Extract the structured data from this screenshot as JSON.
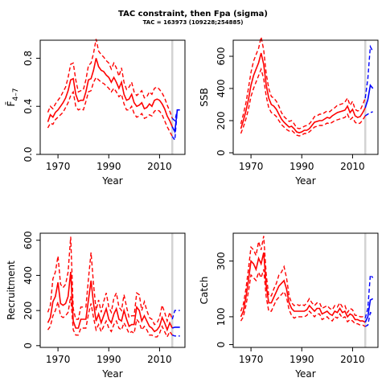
{
  "figure": {
    "title": "TAC constraint, then Fpa (sigma)",
    "subtitle": "TAC = 163973 (109228;254885)"
  },
  "colors": {
    "history": "#ff0000",
    "forecast": "#0000ff",
    "reference_line": "#d3d3d3",
    "frame": "#000000"
  },
  "chart_data": [
    {
      "id": "fbar",
      "type": "line",
      "xlabel": "Year",
      "ylabel": "F̄ 4–7",
      "ylabel_main": "F̄",
      "ylabel_sub": "4–7",
      "xlim": [
        1963,
        2020
      ],
      "ylim": [
        0,
        0.95
      ],
      "xticks": [
        1970,
        1990,
        2010
      ],
      "yticks": [
        0.0,
        0.4,
        0.8
      ],
      "ytick_labels": [
        "0.0",
        "0.4",
        "0.8"
      ],
      "vline": 2015,
      "history": {
        "x": [
          1966,
          1967,
          1968,
          1969,
          1970,
          1971,
          1972,
          1973,
          1974,
          1975,
          1976,
          1977,
          1978,
          1979,
          1980,
          1981,
          1982,
          1983,
          1984,
          1985,
          1986,
          1987,
          1988,
          1989,
          1990,
          1991,
          1992,
          1993,
          1994,
          1995,
          1996,
          1997,
          1998,
          1999,
          2000,
          2001,
          2002,
          2003,
          2004,
          2005,
          2006,
          2007,
          2008,
          2009,
          2010,
          2011,
          2012,
          2013,
          2014,
          2015
        ],
        "mid": [
          0.27,
          0.33,
          0.31,
          0.35,
          0.37,
          0.4,
          0.43,
          0.47,
          0.53,
          0.62,
          0.63,
          0.5,
          0.44,
          0.45,
          0.45,
          0.52,
          0.62,
          0.63,
          0.7,
          0.8,
          0.73,
          0.7,
          0.69,
          0.66,
          0.64,
          0.6,
          0.64,
          0.6,
          0.55,
          0.6,
          0.5,
          0.45,
          0.46,
          0.5,
          0.43,
          0.4,
          0.41,
          0.43,
          0.38,
          0.39,
          0.42,
          0.4,
          0.45,
          0.46,
          0.45,
          0.42,
          0.38,
          0.32,
          0.28,
          0.23
        ],
        "low": [
          0.22,
          0.26,
          0.25,
          0.29,
          0.31,
          0.33,
          0.35,
          0.39,
          0.43,
          0.49,
          0.52,
          0.4,
          0.37,
          0.38,
          0.37,
          0.44,
          0.52,
          0.53,
          0.6,
          0.64,
          0.62,
          0.6,
          0.59,
          0.57,
          0.55,
          0.52,
          0.55,
          0.52,
          0.48,
          0.5,
          0.42,
          0.37,
          0.37,
          0.4,
          0.34,
          0.31,
          0.32,
          0.34,
          0.3,
          0.31,
          0.33,
          0.32,
          0.36,
          0.37,
          0.36,
          0.33,
          0.28,
          0.23,
          0.19,
          0.15
        ],
        "high": [
          0.35,
          0.4,
          0.38,
          0.42,
          0.45,
          0.48,
          0.52,
          0.56,
          0.64,
          0.75,
          0.76,
          0.62,
          0.52,
          0.53,
          0.54,
          0.62,
          0.74,
          0.76,
          0.84,
          0.96,
          0.86,
          0.83,
          0.81,
          0.78,
          0.76,
          0.71,
          0.76,
          0.72,
          0.65,
          0.72,
          0.6,
          0.54,
          0.56,
          0.6,
          0.52,
          0.49,
          0.51,
          0.53,
          0.47,
          0.48,
          0.52,
          0.5,
          0.55,
          0.56,
          0.54,
          0.51,
          0.47,
          0.41,
          0.36,
          0.3
        ]
      },
      "forecast": {
        "x": [
          2015,
          2016,
          2017,
          2018
        ],
        "mid": [
          0.23,
          0.19,
          0.37,
          0.37
        ],
        "low": [
          0.15,
          0.12,
          0.37,
          0.37
        ],
        "high": [
          0.3,
          0.28,
          0.37,
          0.37
        ]
      }
    },
    {
      "id": "ssb",
      "type": "line",
      "xlabel": "Year",
      "ylabel": "SSB",
      "xlim": [
        1963,
        2020
      ],
      "ylim": [
        -10,
        700
      ],
      "xticks": [
        1970,
        1990,
        2010
      ],
      "yticks": [
        0,
        200,
        400,
        600
      ],
      "ytick_labels": [
        "0",
        "200",
        "400",
        "600"
      ],
      "vline": 2015,
      "history": {
        "x": [
          1966,
          1967,
          1968,
          1969,
          1970,
          1971,
          1972,
          1973,
          1974,
          1975,
          1976,
          1977,
          1978,
          1979,
          1980,
          1981,
          1982,
          1983,
          1984,
          1985,
          1986,
          1987,
          1988,
          1989,
          1990,
          1991,
          1992,
          1993,
          1994,
          1995,
          1996,
          1997,
          1998,
          1999,
          2000,
          2001,
          2002,
          2003,
          2004,
          2005,
          2006,
          2007,
          2008,
          2009,
          2010,
          2011,
          2012,
          2013,
          2014,
          2015
        ],
        "mid": [
          150,
          200,
          260,
          330,
          420,
          480,
          520,
          560,
          620,
          550,
          420,
          340,
          300,
          290,
          270,
          240,
          210,
          190,
          175,
          160,
          165,
          150,
          130,
          125,
          130,
          140,
          140,
          150,
          170,
          190,
          195,
          200,
          200,
          210,
          220,
          215,
          230,
          240,
          250,
          255,
          260,
          265,
          290,
          250,
          270,
          230,
          220,
          225,
          250,
          280
        ],
        "low": [
          120,
          160,
          210,
          270,
          350,
          400,
          440,
          480,
          520,
          460,
          350,
          280,
          250,
          240,
          225,
          200,
          175,
          160,
          145,
          135,
          140,
          125,
          110,
          105,
          110,
          120,
          120,
          130,
          145,
          160,
          165,
          170,
          170,
          175,
          185,
          180,
          190,
          200,
          205,
          210,
          215,
          220,
          240,
          205,
          220,
          190,
          180,
          185,
          205,
          230
        ],
        "high": [
          180,
          240,
          310,
          400,
          500,
          570,
          610,
          650,
          720,
          640,
          490,
          400,
          350,
          340,
          320,
          290,
          250,
          225,
          210,
          195,
          200,
          180,
          155,
          150,
          155,
          165,
          170,
          180,
          200,
          225,
          230,
          240,
          240,
          250,
          260,
          255,
          270,
          280,
          295,
          300,
          305,
          315,
          340,
          295,
          320,
          270,
          260,
          265,
          300,
          340
        ]
      },
      "forecast": {
        "x": [
          2015,
          2016,
          2017,
          2018
        ],
        "mid": [
          280,
          330,
          420,
          400
        ],
        "low": [
          230,
          240,
          250,
          255
        ],
        "high": [
          340,
          460,
          660,
          630
        ]
      }
    },
    {
      "id": "recruitment",
      "type": "line",
      "xlabel": "Year",
      "ylabel": "Recruitment",
      "xlim": [
        1963,
        2020
      ],
      "ylim": [
        -10,
        640
      ],
      "xticks": [
        1970,
        1990,
        2010
      ],
      "yticks": [
        0,
        200,
        400,
        600
      ],
      "ytick_labels": [
        "0",
        "200",
        "400",
        "600"
      ],
      "vline": 2015,
      "history": {
        "x": [
          1966,
          1967,
          1968,
          1969,
          1970,
          1971,
          1972,
          1973,
          1974,
          1975,
          1976,
          1977,
          1978,
          1979,
          1980,
          1981,
          1982,
          1983,
          1984,
          1985,
          1986,
          1987,
          1988,
          1989,
          1990,
          1991,
          1992,
          1993,
          1994,
          1995,
          1996,
          1997,
          1998,
          1999,
          2000,
          2001,
          2002,
          2003,
          2004,
          2005,
          2006,
          2007,
          2008,
          2009,
          2010,
          2011,
          2012,
          2013,
          2014,
          2015
        ],
        "mid": [
          130,
          160,
          250,
          280,
          360,
          240,
          230,
          240,
          280,
          420,
          140,
          100,
          100,
          150,
          150,
          150,
          260,
          370,
          240,
          140,
          180,
          130,
          170,
          210,
          150,
          130,
          180,
          210,
          150,
          140,
          200,
          150,
          110,
          120,
          120,
          220,
          200,
          140,
          170,
          140,
          110,
          100,
          80,
          90,
          110,
          160,
          130,
          90,
          130,
          100
        ],
        "low": [
          90,
          110,
          170,
          200,
          250,
          170,
          160,
          170,
          190,
          280,
          90,
          60,
          60,
          100,
          100,
          100,
          180,
          240,
          160,
          90,
          120,
          80,
          110,
          140,
          100,
          80,
          120,
          140,
          100,
          90,
          130,
          100,
          70,
          80,
          70,
          150,
          130,
          90,
          110,
          90,
          60,
          60,
          50,
          50,
          70,
          110,
          80,
          50,
          80,
          60
        ],
        "high": [
          190,
          230,
          380,
          420,
          510,
          350,
          330,
          350,
          420,
          620,
          210,
          150,
          150,
          220,
          220,
          220,
          380,
          530,
          350,
          200,
          260,
          190,
          250,
          300,
          220,
          190,
          270,
          300,
          220,
          200,
          290,
          220,
          160,
          170,
          170,
          300,
          290,
          200,
          250,
          200,
          160,
          150,
          120,
          130,
          160,
          230,
          190,
          140,
          190,
          150
        ]
      },
      "forecast": {
        "x": [
          2015,
          2016,
          2017,
          2018
        ],
        "mid": [
          100,
          105,
          105,
          105
        ],
        "low": [
          60,
          55,
          55,
          55
        ],
        "high": [
          150,
          200,
          200,
          200
        ]
      }
    },
    {
      "id": "catch",
      "type": "line",
      "xlabel": "Year",
      "ylabel": "Catch",
      "xlim": [
        1963,
        2020
      ],
      "ylim": [
        -10,
        400
      ],
      "xticks": [
        1970,
        1990,
        2010
      ],
      "yticks": [
        0,
        100,
        300
      ],
      "ytick_labels": [
        "0",
        "100",
        "300"
      ],
      "vline": 2015,
      "history": {
        "x": [
          1966,
          1967,
          1968,
          1969,
          1970,
          1971,
          1972,
          1973,
          1974,
          1975,
          1976,
          1977,
          1978,
          1979,
          1980,
          1981,
          1982,
          1983,
          1984,
          1985,
          1986,
          1987,
          1988,
          1989,
          1990,
          1991,
          1992,
          1993,
          1994,
          1995,
          1996,
          1997,
          1998,
          1999,
          2000,
          2001,
          2002,
          2003,
          2004,
          2005,
          2006,
          2007,
          2008,
          2009,
          2010,
          2011,
          2012,
          2013,
          2014,
          2015
        ],
        "mid": [
          100,
          120,
          170,
          230,
          300,
          290,
          270,
          310,
          290,
          330,
          210,
          150,
          150,
          170,
          190,
          210,
          220,
          230,
          200,
          150,
          130,
          120,
          120,
          120,
          120,
          120,
          125,
          140,
          130,
          120,
          130,
          130,
          110,
          115,
          120,
          110,
          105,
          120,
          115,
          130,
          115,
          120,
          100,
          110,
          105,
          90,
          90,
          85,
          85,
          80
        ],
        "low": [
          85,
          100,
          140,
          190,
          250,
          240,
          230,
          260,
          240,
          270,
          170,
          120,
          120,
          140,
          160,
          170,
          180,
          190,
          170,
          125,
          105,
          95,
          100,
          100,
          100,
          100,
          105,
          120,
          110,
          100,
          110,
          110,
          90,
          95,
          100,
          90,
          85,
          100,
          95,
          110,
          95,
          100,
          82,
          90,
          85,
          75,
          75,
          70,
          70,
          65
        ],
        "high": [
          120,
          145,
          200,
          270,
          350,
          340,
          320,
          370,
          340,
          390,
          250,
          175,
          175,
          200,
          220,
          250,
          260,
          280,
          240,
          175,
          150,
          140,
          145,
          140,
          145,
          140,
          150,
          165,
          150,
          140,
          150,
          150,
          130,
          135,
          140,
          130,
          125,
          140,
          135,
          150,
          135,
          140,
          115,
          130,
          125,
          105,
          105,
          100,
          100,
          95
        ]
      },
      "forecast": {
        "x": [
          2015,
          2016,
          2017,
          2018
        ],
        "mid": [
          80,
          100,
          160,
          165
        ],
        "low": [
          65,
          70,
          115,
          110
        ],
        "high": [
          95,
          130,
          250,
          240
        ]
      }
    }
  ]
}
